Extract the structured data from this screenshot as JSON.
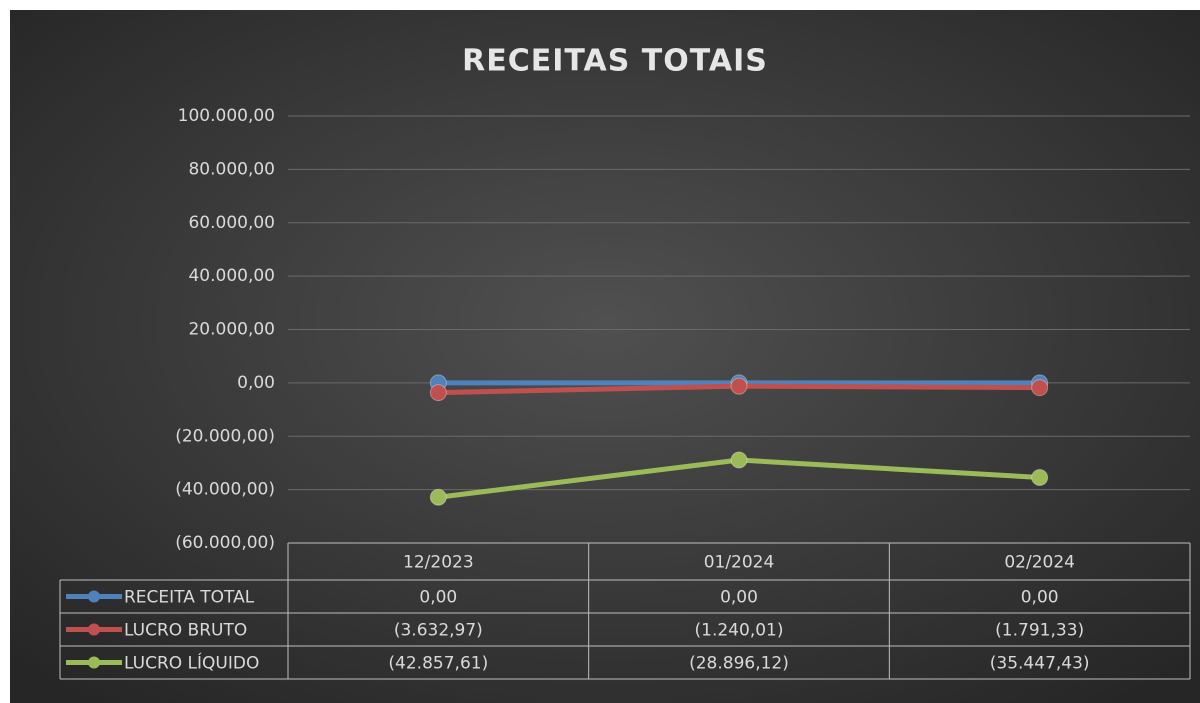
{
  "chart_data": {
    "type": "line",
    "title": "RECEITAS TOTAIS",
    "categories": [
      "12/2023",
      "01/2024",
      "02/2024"
    ],
    "series": [
      {
        "name": "RECEITA TOTAL",
        "color": "#4f81bd",
        "values": [
          0,
          0,
          0
        ],
        "value_labels": [
          "0,00",
          "0,00",
          "0,00"
        ]
      },
      {
        "name": "LUCRO BRUTO",
        "color": "#c0504d",
        "values": [
          -3632.97,
          -1240.01,
          -1791.33
        ],
        "value_labels": [
          "(3.632,97)",
          "(1.240,01)",
          "(1.791,33)"
        ]
      },
      {
        "name": "LUCRO LÍQUIDO",
        "color": "#9bbb59",
        "values": [
          -42857.61,
          -28896.12,
          -35447.43
        ],
        "value_labels": [
          "(42.857,61)",
          "(28.896,12)",
          "(35.447,43)"
        ]
      }
    ],
    "ylim": [
      -60000,
      100000
    ],
    "yticks": [
      {
        "value": -60000,
        "label": "(60.000,00)"
      },
      {
        "value": -40000,
        "label": "(40.000,00)"
      },
      {
        "value": -20000,
        "label": "(20.000,00)"
      },
      {
        "value": 0,
        "label": "0,00"
      },
      {
        "value": 20000,
        "label": "20.000,00"
      },
      {
        "value": 40000,
        "label": "40.000,00"
      },
      {
        "value": 60000,
        "label": "60.000,00"
      },
      {
        "value": 80000,
        "label": "80.000,00"
      },
      {
        "value": 100000,
        "label": "100.000,00"
      }
    ],
    "grid": true
  }
}
